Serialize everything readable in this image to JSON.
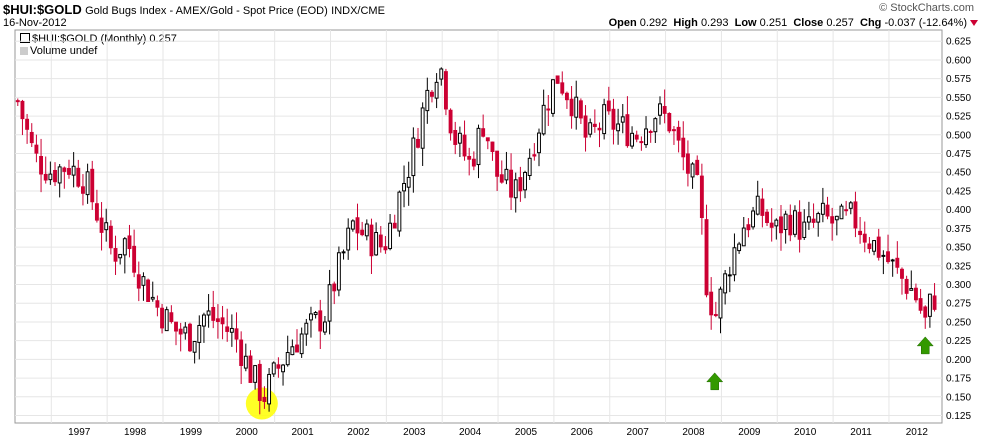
{
  "header": {
    "symbol": "$HUI:$GOLD",
    "description": "Gold Bugs Index - AMEX/Gold - Spot Price (EOD)",
    "exchange": "INDX/CME",
    "date": "16-Nov-2012",
    "open_label": "Open",
    "open": "0.292",
    "high_label": "High",
    "high": "0.293",
    "low_label": "Low",
    "low": "0.251",
    "close_label": "Close",
    "close": "0.257",
    "chg_label": "Chg",
    "chg": "-0.037 (-12.64%)"
  },
  "brand": "© StockCharts.com",
  "legend": {
    "series": "$HUI:$GOLD (Monthly) 0.257",
    "volume": "Volume undef"
  },
  "colors": {
    "up": "#ffffff",
    "down": "#cc0033",
    "outline": "#000000",
    "grid": "#e6e6e6",
    "highlight": "#ffff00",
    "marker": "#339900"
  },
  "chart_data": {
    "type": "candlestick",
    "interval": "monthly",
    "x_tick_labels": [
      "1997",
      "1998",
      "1999",
      "2000",
      "2001",
      "2002",
      "2003",
      "2004",
      "2005",
      "2006",
      "2007",
      "2008",
      "2009",
      "2010",
      "2011",
      "2012"
    ],
    "y_tick_labels": [
      "0.625",
      "0.600",
      "0.575",
      "0.550",
      "0.525",
      "0.500",
      "0.475",
      "0.450",
      "0.425",
      "0.400",
      "0.375",
      "0.350",
      "0.325",
      "0.300",
      "0.275",
      "0.250",
      "0.225",
      "0.200",
      "0.175",
      "0.150",
      "0.125"
    ],
    "ylim": [
      0.115,
      0.64
    ],
    "xlim": [
      1996.35,
      2012.95
    ],
    "y_axis_side": "right",
    "grid": true,
    "anchors": [
      [
        1996.4,
        0.545
      ],
      [
        1996.7,
        0.47
      ],
      [
        1997.0,
        0.45
      ],
      [
        1997.3,
        0.46
      ],
      [
        1997.6,
        0.44
      ],
      [
        1997.9,
        0.38
      ],
      [
        1998.1,
        0.34
      ],
      [
        1998.35,
        0.36
      ],
      [
        1998.6,
        0.31
      ],
      [
        1998.9,
        0.27
      ],
      [
        1999.2,
        0.24
      ],
      [
        1999.5,
        0.23
      ],
      [
        1999.75,
        0.26
      ],
      [
        2000.0,
        0.25
      ],
      [
        2000.3,
        0.23
      ],
      [
        2000.55,
        0.185
      ],
      [
        2000.8,
        0.15
      ],
      [
        2001.0,
        0.18
      ],
      [
        2001.3,
        0.22
      ],
      [
        2001.6,
        0.24
      ],
      [
        2001.9,
        0.26
      ],
      [
        2002.1,
        0.31
      ],
      [
        2002.4,
        0.38
      ],
      [
        2002.7,
        0.36
      ],
      [
        2002.95,
        0.35
      ],
      [
        2003.2,
        0.41
      ],
      [
        2003.45,
        0.47
      ],
      [
        2003.75,
        0.56
      ],
      [
        2003.95,
        0.6
      ],
      [
        2004.2,
        0.5
      ],
      [
        2004.5,
        0.46
      ],
      [
        2004.75,
        0.52
      ],
      [
        2004.95,
        0.45
      ],
      [
        2005.3,
        0.42
      ],
      [
        2005.55,
        0.47
      ],
      [
        2005.8,
        0.53
      ],
      [
        2006.05,
        0.58
      ],
      [
        2006.3,
        0.55
      ],
      [
        2006.6,
        0.49
      ],
      [
        2006.9,
        0.52
      ],
      [
        2007.2,
        0.51
      ],
      [
        2007.5,
        0.5
      ],
      [
        2007.8,
        0.53
      ],
      [
        2008.05,
        0.52
      ],
      [
        2008.3,
        0.47
      ],
      [
        2008.6,
        0.42
      ],
      [
        2008.75,
        0.29
      ],
      [
        2008.9,
        0.26
      ],
      [
        2009.15,
        0.33
      ],
      [
        2009.4,
        0.38
      ],
      [
        2009.7,
        0.4
      ],
      [
        2009.95,
        0.37
      ],
      [
        2010.2,
        0.39
      ],
      [
        2010.5,
        0.37
      ],
      [
        2010.8,
        0.39
      ],
      [
        2011.05,
        0.38
      ],
      [
        2011.35,
        0.39
      ],
      [
        2011.65,
        0.36
      ],
      [
        2011.9,
        0.34
      ],
      [
        2012.2,
        0.31
      ],
      [
        2012.45,
        0.29
      ],
      [
        2012.65,
        0.25
      ],
      [
        2012.8,
        0.29
      ],
      [
        2012.88,
        0.257
      ]
    ],
    "annotations": [
      {
        "type": "highlight-circle",
        "x": 2000.77,
        "y": 0.141
      },
      {
        "type": "up-arrow",
        "x": 2008.88,
        "y": 0.17
      },
      {
        "type": "up-arrow",
        "x": 2012.65,
        "y": 0.218
      }
    ]
  }
}
